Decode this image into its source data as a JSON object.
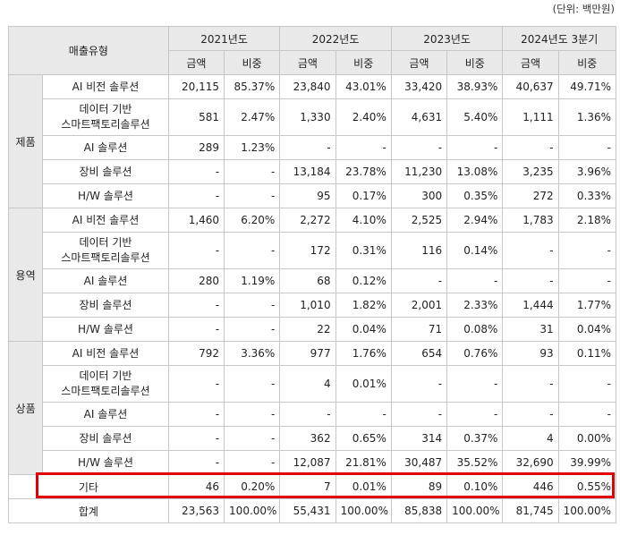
{
  "unit_note": "(단위: 백만원)",
  "header": {
    "sales_type": "매출유형",
    "periods": [
      "2021년도",
      "2022년도",
      "2023년도",
      "2024년도 3분기"
    ],
    "amount_label": "금액",
    "ratio_label": "비중"
  },
  "categories": [
    {
      "name": "제품",
      "rows": [
        {
          "type": [
            "AI 비전 솔루션"
          ],
          "values": [
            "20,115",
            "85.37%",
            "23,840",
            "43.01%",
            "33,420",
            "38.93%",
            "40,637",
            "49.71%"
          ]
        },
        {
          "type": [
            "데이터 기반",
            "스마트팩토리솔루션"
          ],
          "values": [
            "581",
            "2.47%",
            "1,330",
            "2.40%",
            "4,631",
            "5.40%",
            "1,111",
            "1.36%"
          ]
        },
        {
          "type": [
            "AI 솔루션"
          ],
          "values": [
            "289",
            "1.23%",
            "-",
            "-",
            "-",
            "-",
            "-",
            "-"
          ]
        },
        {
          "type": [
            "장비 솔루션"
          ],
          "values": [
            "-",
            "-",
            "13,184",
            "23.78%",
            "11,230",
            "13.08%",
            "3,235",
            "3.96%"
          ]
        },
        {
          "type": [
            "H/W 솔루션"
          ],
          "values": [
            "-",
            "-",
            "95",
            "0.17%",
            "300",
            "0.35%",
            "272",
            "0.33%"
          ]
        }
      ]
    },
    {
      "name": "용역",
      "rows": [
        {
          "type": [
            "AI 비전 솔루션"
          ],
          "values": [
            "1,460",
            "6.20%",
            "2,272",
            "4.10%",
            "2,525",
            "2.94%",
            "1,783",
            "2.18%"
          ]
        },
        {
          "type": [
            "데이터 기반",
            "스마트팩토리솔루션"
          ],
          "values": [
            "-",
            "-",
            "172",
            "0.31%",
            "116",
            "0.14%",
            "-",
            "-"
          ]
        },
        {
          "type": [
            "AI 솔루션"
          ],
          "values": [
            "280",
            "1.19%",
            "68",
            "0.12%",
            "-",
            "-",
            "-",
            "-"
          ]
        },
        {
          "type": [
            "장비 솔루션"
          ],
          "values": [
            "-",
            "-",
            "1,010",
            "1.82%",
            "2,001",
            "2.33%",
            "1,444",
            "1.77%"
          ]
        },
        {
          "type": [
            "H/W 솔루션"
          ],
          "values": [
            "-",
            "-",
            "22",
            "0.04%",
            "71",
            "0.08%",
            "31",
            "0.04%"
          ]
        }
      ]
    },
    {
      "name": "상품",
      "rows": [
        {
          "type": [
            "AI 비전 솔루션"
          ],
          "values": [
            "792",
            "3.36%",
            "977",
            "1.76%",
            "654",
            "0.76%",
            "93",
            "0.11%"
          ]
        },
        {
          "type": [
            "데이터 기반",
            "스마트팩토리솔루션"
          ],
          "values": [
            "-",
            "-",
            "4",
            "0.01%",
            "-",
            "-",
            "-",
            "-"
          ]
        },
        {
          "type": [
            "AI 솔루션"
          ],
          "values": [
            "-",
            "-",
            "-",
            "-",
            "-",
            "-",
            "-",
            "-"
          ]
        },
        {
          "type": [
            "장비 솔루션"
          ],
          "values": [
            "-",
            "-",
            "362",
            "0.65%",
            "314",
            "0.37%",
            "4",
            "0.00%"
          ]
        },
        {
          "type": [
            "H/W 솔루션"
          ],
          "values": [
            "-",
            "-",
            "12,087",
            "21.81%",
            "30,487",
            "35.52%",
            "32,690",
            "39.99%"
          ],
          "highlighted": true
        }
      ]
    }
  ],
  "other": {
    "label": "기타",
    "values": [
      "46",
      "0.20%",
      "7",
      "0.01%",
      "89",
      "0.10%",
      "446",
      "0.55%"
    ]
  },
  "total": {
    "label": "합계",
    "values": [
      "23,563",
      "100.00%",
      "55,431",
      "100.00%",
      "85,838",
      "100.00%",
      "81,745",
      "100.00%"
    ]
  },
  "colors": {
    "header_bg": "#e9e9e9",
    "border": "#c7c7c7",
    "highlight": "#e00000"
  }
}
